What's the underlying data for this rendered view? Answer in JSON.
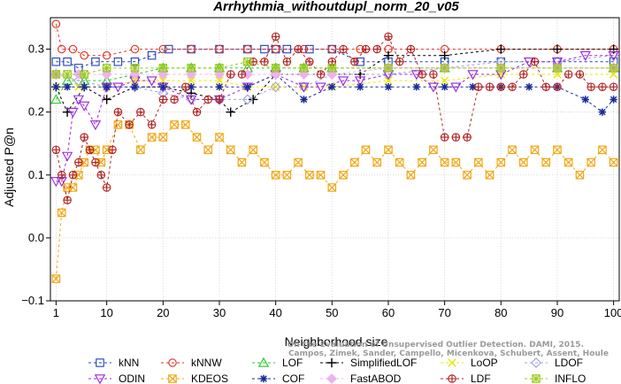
{
  "credit": {
    "line1": "Campos, Zimek, Sander, Campello, Micenkova, Schubert, Assent, Houle",
    "line2": "On the Evaluation of Unsupervised Outlier Detection. DAMI, 2015."
  },
  "chart_data": {
    "type": "line",
    "title": "Arrhythmia_withoutdupl_norm_20_v05",
    "xlabel": "Neighborhood size",
    "ylabel": "Adjusted P@n",
    "xlim": [
      0,
      101
    ],
    "ylim": [
      -0.1,
      0.35
    ],
    "xticks": [
      1,
      10,
      20,
      30,
      40,
      50,
      60,
      70,
      80,
      90,
      100
    ],
    "yticks": [
      -0.1,
      0.0,
      0.1,
      0.2,
      0.3
    ],
    "ytick_labels": [
      "−0.1",
      "0.0",
      "0.1",
      "0.2",
      "0.3"
    ],
    "grid": true,
    "legend_position": "bottom",
    "series": [
      {
        "name": "kNN",
        "color": "#1f3fbf",
        "marker": "square",
        "dash": "3,3",
        "x": [
          1,
          3,
          5,
          8,
          12,
          15,
          18,
          21,
          25,
          30,
          35,
          38,
          40,
          42,
          46,
          50,
          55,
          60,
          70,
          80,
          90,
          100
        ],
        "y": [
          0.28,
          0.28,
          0.27,
          0.28,
          0.28,
          0.28,
          0.29,
          0.3,
          0.3,
          0.3,
          0.3,
          0.3,
          0.3,
          0.3,
          0.3,
          0.3,
          0.28,
          0.28,
          0.28,
          0.28,
          0.28,
          0.28
        ]
      },
      {
        "name": "kNNW",
        "color": "#e03020",
        "marker": "circle",
        "dash": "3,3",
        "x": [
          1,
          2,
          4,
          6,
          10,
          15,
          20,
          25,
          30,
          35,
          40,
          45,
          50,
          55,
          60,
          70,
          80,
          90,
          100
        ],
        "y": [
          0.34,
          0.3,
          0.3,
          0.29,
          0.29,
          0.3,
          0.3,
          0.3,
          0.3,
          0.3,
          0.3,
          0.3,
          0.3,
          0.3,
          0.3,
          0.3,
          0.3,
          0.3,
          0.3
        ]
      },
      {
        "name": "LOF",
        "color": "#22c922",
        "marker": "triangle-up",
        "dash": "3,3",
        "x": [
          1,
          3,
          6,
          10,
          15,
          20,
          25,
          30,
          35,
          40,
          45,
          50,
          60,
          70,
          80,
          90,
          100
        ],
        "y": [
          0.22,
          0.25,
          0.25,
          0.25,
          0.26,
          0.27,
          0.27,
          0.27,
          0.27,
          0.27,
          0.27,
          0.27,
          0.27,
          0.27,
          0.27,
          0.27,
          0.27
        ]
      },
      {
        "name": "SimplifiedLOF",
        "color": "#000000",
        "marker": "plus",
        "dash": "3,3",
        "x": [
          1,
          3,
          6,
          10,
          15,
          20,
          25,
          30,
          32,
          36,
          40,
          45,
          50,
          55,
          60,
          70,
          80,
          90,
          100
        ],
        "y": [
          0.24,
          0.2,
          0.24,
          0.22,
          0.24,
          0.24,
          0.23,
          0.22,
          0.2,
          0.22,
          0.26,
          0.26,
          0.26,
          0.26,
          0.29,
          0.29,
          0.3,
          0.3,
          0.3
        ]
      },
      {
        "name": "LoOP",
        "color": "#e8e800",
        "marker": "cross",
        "dash": "3,3",
        "x": [
          1,
          5,
          10,
          15,
          20,
          25,
          30,
          35,
          40,
          45,
          50,
          60,
          70,
          80,
          90,
          100
        ],
        "y": [
          0.24,
          0.24,
          0.24,
          0.25,
          0.25,
          0.25,
          0.25,
          0.24,
          0.24,
          0.24,
          0.24,
          0.25,
          0.25,
          0.26,
          0.26,
          0.26
        ]
      },
      {
        "name": "LDOF",
        "color": "#a0a0e0",
        "marker": "diamond",
        "dash": "3,3",
        "x": [
          1,
          5,
          10,
          15,
          20,
          25,
          30,
          35,
          40,
          45,
          50,
          60,
          70,
          80,
          90,
          100
        ],
        "y": [
          0.26,
          0.25,
          0.24,
          0.24,
          0.23,
          0.22,
          0.22,
          0.22,
          0.24,
          0.24,
          0.26,
          0.26,
          0.27,
          0.28,
          0.28,
          0.29
        ]
      },
      {
        "name": "ODIN",
        "color": "#9a22e0",
        "marker": "triangle-down",
        "dash": "3,3",
        "x": [
          1,
          2,
          3,
          4,
          5,
          6,
          8,
          10,
          12,
          15,
          18,
          20,
          25,
          30,
          35,
          40,
          45,
          48,
          52,
          55,
          60,
          65,
          68,
          72,
          75,
          80,
          85,
          90,
          95,
          100
        ],
        "y": [
          0.09,
          0.09,
          0.13,
          0.2,
          0.22,
          0.21,
          0.18,
          0.24,
          0.24,
          0.25,
          0.25,
          0.24,
          0.22,
          0.22,
          0.24,
          0.26,
          0.24,
          0.24,
          0.25,
          0.25,
          0.26,
          0.26,
          0.24,
          0.24,
          0.26,
          0.26,
          0.28,
          0.28,
          0.29,
          0.29
        ]
      },
      {
        "name": "KDEOS",
        "color": "#f0a818",
        "marker": "square-x",
        "dash": "3,3",
        "x": [
          1,
          2,
          3,
          4,
          5,
          6,
          7,
          8,
          9,
          10,
          12,
          14,
          16,
          18,
          20,
          22,
          24,
          26,
          28,
          30,
          32,
          34,
          36,
          38,
          40,
          42,
          44,
          46,
          48,
          50,
          52,
          54,
          56,
          58,
          60,
          62,
          64,
          66,
          68,
          70,
          72,
          74,
          76,
          78,
          80,
          82,
          84,
          86,
          88,
          90,
          92,
          94,
          96,
          98,
          100
        ],
        "y": [
          -0.065,
          0.04,
          0.08,
          0.08,
          0.1,
          0.12,
          0.14,
          0.14,
          0.12,
          0.14,
          0.18,
          0.18,
          0.14,
          0.16,
          0.16,
          0.18,
          0.18,
          0.16,
          0.14,
          0.16,
          0.14,
          0.12,
          0.14,
          0.12,
          0.1,
          0.1,
          0.12,
          0.1,
          0.1,
          0.08,
          0.1,
          0.12,
          0.14,
          0.12,
          0.14,
          0.12,
          0.1,
          0.12,
          0.14,
          0.12,
          0.12,
          0.1,
          0.12,
          0.1,
          0.12,
          0.14,
          0.12,
          0.14,
          0.12,
          0.14,
          0.12,
          0.1,
          0.12,
          0.14,
          0.12
        ]
      },
      {
        "name": "COF",
        "color": "#1a2a9a",
        "marker": "asterisk",
        "dash": "3,3",
        "x": [
          1,
          3,
          6,
          10,
          15,
          20,
          25,
          30,
          35,
          40,
          45,
          50,
          55,
          60,
          65,
          70,
          75,
          80,
          85,
          90,
          95,
          98,
          100
        ],
        "y": [
          0.24,
          0.24,
          0.24,
          0.24,
          0.24,
          0.24,
          0.24,
          0.24,
          0.24,
          0.26,
          0.22,
          0.24,
          0.24,
          0.24,
          0.24,
          0.24,
          0.24,
          0.24,
          0.24,
          0.24,
          0.22,
          0.2,
          0.22
        ]
      },
      {
        "name": "FastABOD",
        "color": "#f0b0f0",
        "marker": "diamond-filled",
        "dash": "3,3",
        "x": [
          1,
          5,
          10,
          15,
          20,
          25,
          30,
          35,
          40,
          45,
          50,
          60,
          70,
          80,
          90,
          100
        ],
        "y": [
          0.26,
          0.26,
          0.26,
          0.26,
          0.26,
          0.26,
          0.26,
          0.26,
          0.26,
          0.26,
          0.26,
          0.27,
          0.27,
          0.27,
          0.27,
          0.27
        ]
      },
      {
        "name": "LDF",
        "color": "#b02020",
        "marker": "circle-plus",
        "dash": "3,3",
        "x": [
          1,
          2,
          3,
          4,
          5,
          6,
          7,
          8,
          9,
          10,
          11,
          12,
          14,
          16,
          18,
          20,
          22,
          24,
          26,
          28,
          30,
          32,
          34,
          36,
          38,
          40,
          42,
          44,
          46,
          48,
          50,
          52,
          54,
          56,
          58,
          60,
          62,
          64,
          66,
          68,
          70,
          72,
          74,
          76,
          78,
          80,
          82,
          84,
          86,
          88,
          90,
          92,
          94,
          96,
          98,
          100
        ],
        "y": [
          0.14,
          0.1,
          0.06,
          0.1,
          0.12,
          0.16,
          0.14,
          0.12,
          0.1,
          0.08,
          0.14,
          0.2,
          0.18,
          0.2,
          0.18,
          0.22,
          0.22,
          0.24,
          0.2,
          0.22,
          0.22,
          0.26,
          0.26,
          0.28,
          0.28,
          0.32,
          0.28,
          0.3,
          0.28,
          0.26,
          0.28,
          0.3,
          0.28,
          0.3,
          0.3,
          0.32,
          0.28,
          0.3,
          0.26,
          0.26,
          0.16,
          0.16,
          0.16,
          0.24,
          0.24,
          0.24,
          0.24,
          0.26,
          0.28,
          0.24,
          0.24,
          0.26,
          0.26,
          0.24,
          0.24,
          0.24
        ]
      },
      {
        "name": "INFLO",
        "color": "#9ac818",
        "marker": "square-star",
        "dash": "3,3",
        "x": [
          1,
          3,
          6,
          10,
          15,
          20,
          25,
          30,
          35,
          40,
          45,
          50,
          60,
          70,
          80,
          90,
          100
        ],
        "y": [
          0.26,
          0.26,
          0.26,
          0.27,
          0.27,
          0.27,
          0.27,
          0.27,
          0.28,
          0.27,
          0.27,
          0.27,
          0.27,
          0.27,
          0.27,
          0.27,
          0.27
        ]
      }
    ]
  }
}
